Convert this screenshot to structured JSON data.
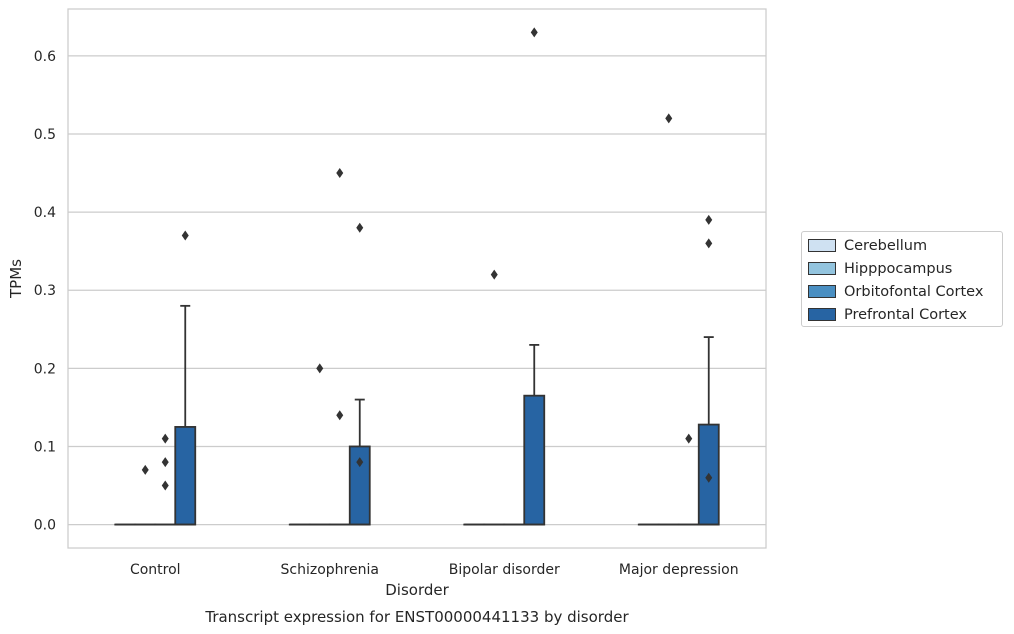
{
  "chart_data": {
    "type": "box",
    "title": "Transcript expression for ENST00000441133 by disorder",
    "xlabel": "Disorder",
    "ylabel": "TPMs",
    "ylim": [
      -0.03,
      0.66
    ],
    "yticks": [
      0.0,
      0.1,
      0.2,
      0.3,
      0.4,
      0.5,
      0.6
    ],
    "ytick_labels": [
      "0.0",
      "0.1",
      "0.2",
      "0.3",
      "0.4",
      "0.5",
      "0.6"
    ],
    "categories": [
      "Control",
      "Schizophrenia",
      "Bipolar disorder",
      "Major depression"
    ],
    "grid": "horizontal",
    "legend_placement": "outside-right",
    "series": [
      {
        "name": "Cerebellum",
        "color": "#cfe1f2",
        "boxes": [
          {
            "q1": 0,
            "median": 0,
            "q3": 0,
            "whisker_low": 0,
            "whisker_high": 0,
            "outliers": []
          },
          {
            "q1": 0,
            "median": 0,
            "q3": 0,
            "whisker_low": 0,
            "whisker_high": 0,
            "outliers": []
          },
          {
            "q1": 0,
            "median": 0,
            "q3": 0,
            "whisker_low": 0,
            "whisker_high": 0,
            "outliers": []
          },
          {
            "q1": 0,
            "median": 0,
            "q3": 0,
            "whisker_low": 0,
            "whisker_high": 0,
            "outliers": []
          }
        ]
      },
      {
        "name": "Hipppocampus",
        "color": "#93c4de",
        "boxes": [
          {
            "q1": 0,
            "median": 0,
            "q3": 0,
            "whisker_low": 0,
            "whisker_high": 0,
            "outliers": [
              0.07
            ]
          },
          {
            "q1": 0,
            "median": 0,
            "q3": 0,
            "whisker_low": 0,
            "whisker_high": 0,
            "outliers": [
              0.2
            ]
          },
          {
            "q1": 0,
            "median": 0,
            "q3": 0,
            "whisker_low": 0,
            "whisker_high": 0,
            "outliers": [
              0.32
            ]
          },
          {
            "q1": 0,
            "median": 0,
            "q3": 0,
            "whisker_low": 0,
            "whisker_high": 0,
            "outliers": [
              0.52
            ]
          }
        ]
      },
      {
        "name": "Orbitofontal Cortex",
        "color": "#4a8fc2",
        "boxes": [
          {
            "q1": 0,
            "median": 0,
            "q3": 0,
            "whisker_low": 0,
            "whisker_high": 0,
            "outliers": [
              0.11,
              0.08,
              0.05
            ]
          },
          {
            "q1": 0,
            "median": 0,
            "q3": 0,
            "whisker_low": 0,
            "whisker_high": 0,
            "outliers": [
              0.14,
              0.45
            ]
          },
          {
            "q1": 0,
            "median": 0,
            "q3": 0,
            "whisker_low": 0,
            "whisker_high": 0,
            "outliers": []
          },
          {
            "q1": 0,
            "median": 0,
            "q3": 0,
            "whisker_low": 0,
            "whisker_high": 0,
            "outliers": [
              0.11
            ]
          }
        ]
      },
      {
        "name": "Prefrontal Cortex",
        "color": "#2764a3",
        "boxes": [
          {
            "q1": 0,
            "median": 0,
            "q3": 0.125,
            "whisker_low": 0,
            "whisker_high": 0.28,
            "outliers": [
              0.37
            ]
          },
          {
            "q1": 0,
            "median": 0,
            "q3": 0.1,
            "whisker_low": 0,
            "whisker_high": 0.16,
            "outliers": [
              0.08,
              0.38
            ]
          },
          {
            "q1": 0,
            "median": 0,
            "q3": 0.165,
            "whisker_low": 0,
            "whisker_high": 0.23,
            "outliers": [
              0.63
            ]
          },
          {
            "q1": 0,
            "median": 0,
            "q3": 0.128,
            "whisker_low": 0,
            "whisker_high": 0.24,
            "outliers": [
              0.06,
              0.36,
              0.39
            ]
          }
        ]
      }
    ]
  }
}
